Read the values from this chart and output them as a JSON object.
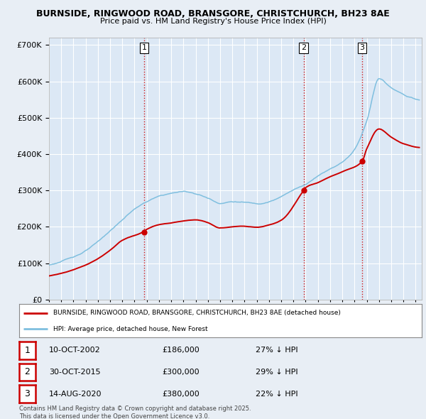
{
  "title_line1": "BURNSIDE, RINGWOOD ROAD, BRANSGORE, CHRISTCHURCH, BH23 8AE",
  "title_line2": "Price paid vs. HM Land Registry's House Price Index (HPI)",
  "background_color": "#e8eef5",
  "plot_bg_color": "#dce8f5",
  "ylim": [
    0,
    720000
  ],
  "yticks": [
    0,
    100000,
    200000,
    300000,
    400000,
    500000,
    600000,
    700000
  ],
  "xlim_start": 1995.0,
  "xlim_end": 2025.5,
  "sale_dates": [
    2002.78,
    2015.83,
    2020.62
  ],
  "sale_prices": [
    186000,
    300000,
    380000
  ],
  "sale_labels": [
    "1",
    "2",
    "3"
  ],
  "legend_line1": "BURNSIDE, RINGWOOD ROAD, BRANSGORE, CHRISTCHURCH, BH23 8AE (detached house)",
  "legend_line2": "HPI: Average price, detached house, New Forest",
  "table_entries": [
    {
      "num": "1",
      "date": "10-OCT-2002",
      "price": "£186,000",
      "hpi": "27% ↓ HPI"
    },
    {
      "num": "2",
      "date": "30-OCT-2015",
      "price": "£300,000",
      "hpi": "29% ↓ HPI"
    },
    {
      "num": "3",
      "date": "14-AUG-2020",
      "price": "£380,000",
      "hpi": "22% ↓ HPI"
    }
  ],
  "footer": "Contains HM Land Registry data © Crown copyright and database right 2025.\nThis data is licensed under the Open Government Licence v3.0.",
  "hpi_color": "#7fbfdf",
  "price_color": "#cc0000",
  "sale_marker_color": "#cc0000",
  "vline_color": "#cc0000",
  "grid_color": "#ffffff"
}
